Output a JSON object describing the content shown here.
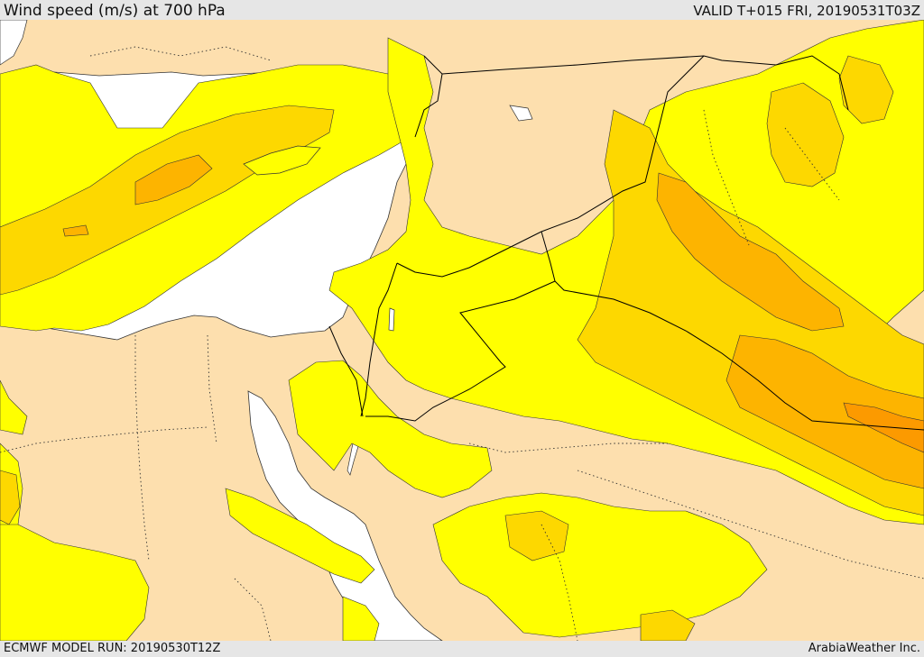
{
  "header": {
    "title": "Wind speed (m/s) at 700 hPa",
    "valid": "VALID T+015 FRI, 20190531T03Z"
  },
  "footer": {
    "model_run": "ECMWF MODEL RUN: 20190530T12Z",
    "credit": "ArabiaWeather Inc."
  },
  "colors": {
    "sea": "#ffffff",
    "band_lowest": "#fddfae",
    "band_low": "#ffff00",
    "band_mid": "#fdd800",
    "band_high": "#fdb400",
    "band_highest": "#fc9a00",
    "border": "#000000",
    "coast": "#333333"
  }
}
